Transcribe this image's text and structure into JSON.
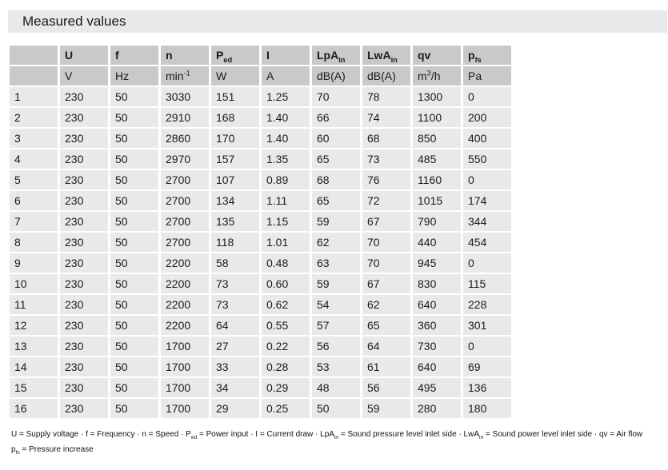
{
  "title": "Measured values",
  "colors": {
    "title_bar_bg": "#e9e9e9",
    "header_cell_bg": "#c9c9c9",
    "data_cell_bg": "#e9e9e9",
    "text": "#1a1a1a",
    "page_bg": "#ffffff"
  },
  "table": {
    "columns": [
      {
        "label": [],
        "unit": []
      },
      {
        "label": [
          {
            "t": "U"
          }
        ],
        "unit": [
          {
            "t": "V"
          }
        ]
      },
      {
        "label": [
          {
            "t": "f"
          }
        ],
        "unit": [
          {
            "t": "Hz"
          }
        ]
      },
      {
        "label": [
          {
            "t": "n"
          }
        ],
        "unit": [
          {
            "t": "min"
          },
          {
            "sup": "-1"
          }
        ]
      },
      {
        "label": [
          {
            "t": "P"
          },
          {
            "sub": "ed"
          }
        ],
        "unit": [
          {
            "t": "W"
          }
        ]
      },
      {
        "label": [
          {
            "t": "I"
          }
        ],
        "unit": [
          {
            "t": "A"
          }
        ]
      },
      {
        "label": [
          {
            "t": "LpA"
          },
          {
            "sub": "in"
          }
        ],
        "unit": [
          {
            "t": "dB(A)"
          }
        ]
      },
      {
        "label": [
          {
            "t": "LwA"
          },
          {
            "sub": "in"
          }
        ],
        "unit": [
          {
            "t": "dB(A)"
          }
        ]
      },
      {
        "label": [
          {
            "t": "qv"
          }
        ],
        "unit": [
          {
            "t": "m"
          },
          {
            "sup": "3"
          },
          {
            "t": "/h"
          }
        ]
      },
      {
        "label": [
          {
            "t": "p"
          },
          {
            "sub": "fs"
          }
        ],
        "unit": [
          {
            "t": "Pa"
          }
        ]
      }
    ],
    "rows": [
      [
        "1",
        "230",
        "50",
        "3030",
        "151",
        "1.25",
        "70",
        "78",
        "1300",
        "0"
      ],
      [
        "2",
        "230",
        "50",
        "2910",
        "168",
        "1.40",
        "66",
        "74",
        "1100",
        "200"
      ],
      [
        "3",
        "230",
        "50",
        "2860",
        "170",
        "1.40",
        "60",
        "68",
        "850",
        "400"
      ],
      [
        "4",
        "230",
        "50",
        "2970",
        "157",
        "1.35",
        "65",
        "73",
        "485",
        "550"
      ],
      [
        "5",
        "230",
        "50",
        "2700",
        "107",
        "0.89",
        "68",
        "76",
        "1160",
        "0"
      ],
      [
        "6",
        "230",
        "50",
        "2700",
        "134",
        "1.11",
        "65",
        "72",
        "1015",
        "174"
      ],
      [
        "7",
        "230",
        "50",
        "2700",
        "135",
        "1.15",
        "59",
        "67",
        "790",
        "344"
      ],
      [
        "8",
        "230",
        "50",
        "2700",
        "118",
        "1.01",
        "62",
        "70",
        "440",
        "454"
      ],
      [
        "9",
        "230",
        "50",
        "2200",
        "58",
        "0.48",
        "63",
        "70",
        "945",
        "0"
      ],
      [
        "10",
        "230",
        "50",
        "2200",
        "73",
        "0.60",
        "59",
        "67",
        "830",
        "115"
      ],
      [
        "11",
        "230",
        "50",
        "2200",
        "73",
        "0.62",
        "54",
        "62",
        "640",
        "228"
      ],
      [
        "12",
        "230",
        "50",
        "2200",
        "64",
        "0.55",
        "57",
        "65",
        "360",
        "301"
      ],
      [
        "13",
        "230",
        "50",
        "1700",
        "27",
        "0.22",
        "56",
        "64",
        "730",
        "0"
      ],
      [
        "14",
        "230",
        "50",
        "1700",
        "33",
        "0.28",
        "53",
        "61",
        "640",
        "69"
      ],
      [
        "15",
        "230",
        "50",
        "1700",
        "34",
        "0.29",
        "48",
        "56",
        "495",
        "136"
      ],
      [
        "16",
        "230",
        "50",
        "1700",
        "29",
        "0.25",
        "50",
        "59",
        "280",
        "180"
      ]
    ]
  },
  "footnote": {
    "line1": [
      {
        "t": "U = Supply voltage · f = Frequency · n = Speed · P"
      },
      {
        "sub": "ed"
      },
      {
        "t": " = Power input · I = Current draw · LpA"
      },
      {
        "sub": "in"
      },
      {
        "t": " = Sound pressure level inlet side · LwA"
      },
      {
        "sub": "in"
      },
      {
        "t": " = Sound power level inlet side · qv = Air flow"
      }
    ],
    "line2": [
      {
        "t": "p"
      },
      {
        "sub": "fs"
      },
      {
        "t": " = Pressure increase"
      }
    ]
  }
}
